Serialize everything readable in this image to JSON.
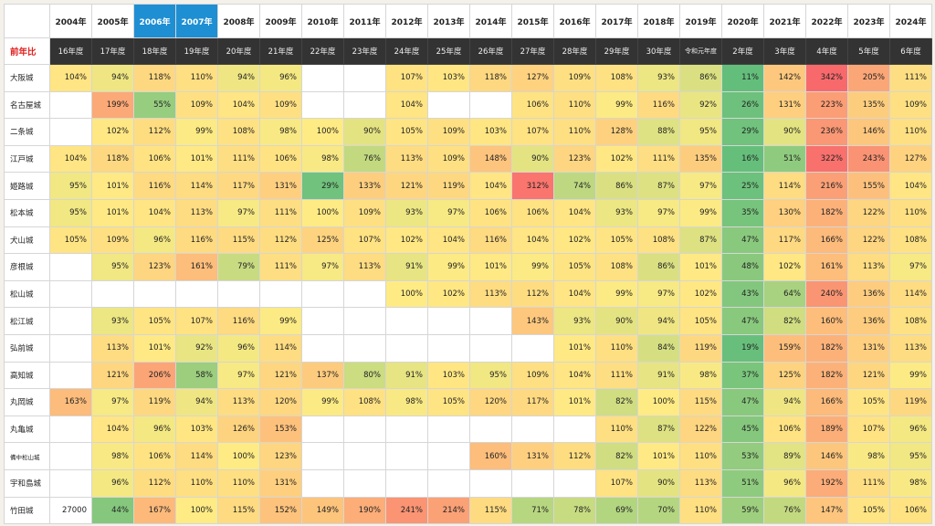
{
  "header": {
    "label": "前年比",
    "years": [
      "2004年",
      "2005年",
      "2006年",
      "2007年",
      "2008年",
      "2009年",
      "2010年",
      "2011年",
      "2012年",
      "2013年",
      "2014年",
      "2015年",
      "2016年",
      "2017年",
      "2018年",
      "2019年",
      "2020年",
      "2021年",
      "2022年",
      "2023年",
      "2024年"
    ],
    "highlighted_years": [
      "2006年",
      "2007年"
    ],
    "fiscal": [
      "16年度",
      "17年度",
      "18年度",
      "19年度",
      "20年度",
      "21年度",
      "22年度",
      "23年度",
      "24年度",
      "25年度",
      "26年度",
      "27年度",
      "28年度",
      "29年度",
      "30年度",
      "令和元年度",
      "2年度",
      "3年度",
      "4年度",
      "5年度",
      "6年度"
    ]
  },
  "colors": {
    "highlight_header": "#1e8fd3",
    "dark_header": "#333333",
    "label_red": "#e02020",
    "scale_low": "#63be7b",
    "scale_mid": "#ffeb84",
    "scale_high": "#f8696b"
  },
  "rows": [
    {
      "name": "大阪城",
      "values": [
        "104%",
        "94%",
        "118%",
        "110%",
        "94%",
        "96%",
        "",
        "",
        "107%",
        "103%",
        "118%",
        "127%",
        "109%",
        "108%",
        "93%",
        "86%",
        "11%",
        "142%",
        "342%",
        "205%",
        "111%"
      ]
    },
    {
      "name": "名古屋城",
      "values": [
        "",
        "199%",
        "55%",
        "109%",
        "104%",
        "109%",
        "",
        "",
        "104%",
        "",
        "",
        "106%",
        "110%",
        "99%",
        "116%",
        "92%",
        "26%",
        "131%",
        "223%",
        "135%",
        "109%"
      ]
    },
    {
      "name": "二条城",
      "values": [
        "",
        "102%",
        "112%",
        "99%",
        "108%",
        "98%",
        "100%",
        "90%",
        "105%",
        "109%",
        "103%",
        "107%",
        "110%",
        "128%",
        "88%",
        "95%",
        "29%",
        "90%",
        "236%",
        "146%",
        "110%"
      ]
    },
    {
      "name": "江戸城",
      "values": [
        "104%",
        "118%",
        "106%",
        "101%",
        "111%",
        "106%",
        "98%",
        "76%",
        "113%",
        "109%",
        "148%",
        "90%",
        "123%",
        "102%",
        "111%",
        "135%",
        "16%",
        "51%",
        "322%",
        "243%",
        "127%"
      ]
    },
    {
      "name": "姫路城",
      "values": [
        "95%",
        "101%",
        "116%",
        "114%",
        "117%",
        "131%",
        "29%",
        "133%",
        "121%",
        "119%",
        "104%",
        "312%",
        "74%",
        "86%",
        "87%",
        "97%",
        "25%",
        "114%",
        "216%",
        "155%",
        "104%"
      ]
    },
    {
      "name": "松本城",
      "values": [
        "95%",
        "101%",
        "104%",
        "113%",
        "97%",
        "111%",
        "100%",
        "109%",
        "93%",
        "97%",
        "106%",
        "106%",
        "104%",
        "93%",
        "97%",
        "99%",
        "35%",
        "130%",
        "182%",
        "122%",
        "110%"
      ]
    },
    {
      "name": "犬山城",
      "values": [
        "105%",
        "109%",
        "96%",
        "116%",
        "115%",
        "112%",
        "125%",
        "107%",
        "102%",
        "104%",
        "116%",
        "104%",
        "102%",
        "105%",
        "108%",
        "87%",
        "47%",
        "117%",
        "166%",
        "122%",
        "108%"
      ]
    },
    {
      "name": "彦根城",
      "values": [
        "",
        "95%",
        "123%",
        "161%",
        "79%",
        "111%",
        "97%",
        "113%",
        "91%",
        "99%",
        "101%",
        "99%",
        "105%",
        "108%",
        "86%",
        "101%",
        "48%",
        "102%",
        "161%",
        "113%",
        "97%"
      ]
    },
    {
      "name": "松山城",
      "values": [
        "",
        "",
        "",
        "",
        "",
        "",
        "",
        "",
        "100%",
        "102%",
        "113%",
        "112%",
        "104%",
        "99%",
        "97%",
        "102%",
        "43%",
        "64%",
        "240%",
        "136%",
        "114%"
      ]
    },
    {
      "name": "松江城",
      "values": [
        "",
        "93%",
        "105%",
        "107%",
        "116%",
        "99%",
        "",
        "",
        "",
        "",
        "",
        "143%",
        "93%",
        "90%",
        "94%",
        "105%",
        "47%",
        "82%",
        "160%",
        "136%",
        "108%"
      ]
    },
    {
      "name": "弘前城",
      "values": [
        "",
        "113%",
        "101%",
        "92%",
        "96%",
        "114%",
        "",
        "",
        "",
        "",
        "",
        "",
        "101%",
        "110%",
        "84%",
        "119%",
        "19%",
        "159%",
        "182%",
        "131%",
        "113%"
      ]
    },
    {
      "name": "高知城",
      "values": [
        "",
        "121%",
        "206%",
        "58%",
        "97%",
        "121%",
        "137%",
        "80%",
        "91%",
        "103%",
        "95%",
        "109%",
        "104%",
        "111%",
        "91%",
        "98%",
        "37%",
        "125%",
        "182%",
        "121%",
        "99%"
      ]
    },
    {
      "name": "丸岡城",
      "values": [
        "163%",
        "97%",
        "119%",
        "94%",
        "113%",
        "120%",
        "99%",
        "108%",
        "98%",
        "105%",
        "120%",
        "117%",
        "101%",
        "82%",
        "100%",
        "115%",
        "47%",
        "94%",
        "166%",
        "105%",
        "119%"
      ]
    },
    {
      "name": "丸亀城",
      "values": [
        "",
        "104%",
        "96%",
        "103%",
        "126%",
        "153%",
        "",
        "",
        "",
        "",
        "",
        "",
        "",
        "110%",
        "87%",
        "122%",
        "45%",
        "106%",
        "189%",
        "107%",
        "96%"
      ]
    },
    {
      "name": "備中松山城",
      "values": [
        "",
        "98%",
        "106%",
        "114%",
        "100%",
        "123%",
        "",
        "",
        "",
        "",
        "160%",
        "131%",
        "112%",
        "82%",
        "101%",
        "110%",
        "53%",
        "89%",
        "146%",
        "98%",
        "95%"
      ]
    },
    {
      "name": "宇和島城",
      "values": [
        "",
        "96%",
        "112%",
        "110%",
        "110%",
        "131%",
        "",
        "",
        "",
        "",
        "",
        "",
        "",
        "107%",
        "90%",
        "113%",
        "51%",
        "96%",
        "192%",
        "111%",
        "98%"
      ]
    },
    {
      "name": "竹田城",
      "values": [
        "27000",
        "44%",
        "167%",
        "100%",
        "115%",
        "152%",
        "149%",
        "190%",
        "241%",
        "214%",
        "115%",
        "71%",
        "78%",
        "69%",
        "70%",
        "110%",
        "59%",
        "76%",
        "147%",
        "105%",
        "106%"
      ]
    }
  ]
}
